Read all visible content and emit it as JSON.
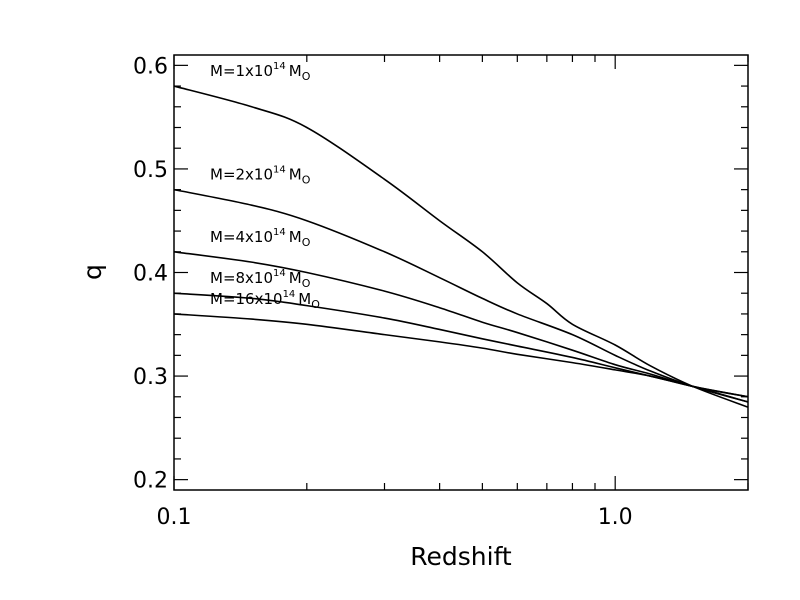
{
  "chart_data": {
    "type": "line",
    "title": "",
    "xlabel": "Redshift",
    "ylabel": "q",
    "x_scale": "log",
    "xlim": [
      0.1,
      2.0
    ],
    "ylim": [
      0.19,
      0.61
    ],
    "x_ticks": [
      {
        "value": 0.1,
        "label": "0.1"
      },
      {
        "value": 1.0,
        "label": "1.0"
      }
    ],
    "y_ticks": [
      {
        "value": 0.2,
        "label": "0.2"
      },
      {
        "value": 0.3,
        "label": "0.3"
      },
      {
        "value": 0.4,
        "label": "0.4"
      },
      {
        "value": 0.5,
        "label": "0.5"
      },
      {
        "value": 0.6,
        "label": "0.6"
      }
    ],
    "grid": false,
    "legend": "none",
    "series": [
      {
        "label": "M=1x10",
        "label_exp": "14",
        "label_unit": "M",
        "label_unit_sub": "O",
        "x": [
          0.1,
          0.15,
          0.2,
          0.3,
          0.4,
          0.5,
          0.6,
          0.7,
          0.8,
          1.0,
          1.2,
          1.5,
          2.0
        ],
        "y": [
          0.58,
          0.56,
          0.54,
          0.49,
          0.45,
          0.42,
          0.39,
          0.37,
          0.35,
          0.33,
          0.31,
          0.29,
          0.27
        ]
      },
      {
        "label": "M=2x10",
        "label_exp": "14",
        "label_unit": "M",
        "label_unit_sub": "O",
        "x": [
          0.1,
          0.15,
          0.2,
          0.3,
          0.4,
          0.5,
          0.6,
          0.8,
          1.0,
          1.2,
          1.5,
          2.0
        ],
        "y": [
          0.48,
          0.465,
          0.45,
          0.42,
          0.395,
          0.375,
          0.36,
          0.34,
          0.32,
          0.305,
          0.29,
          0.275
        ]
      },
      {
        "label": "M=4x10",
        "label_exp": "14",
        "label_unit": "M",
        "label_unit_sub": "O",
        "x": [
          0.1,
          0.15,
          0.2,
          0.3,
          0.4,
          0.5,
          0.6,
          0.8,
          1.0,
          1.2,
          1.5,
          2.0
        ],
        "y": [
          0.42,
          0.41,
          0.4,
          0.382,
          0.366,
          0.352,
          0.342,
          0.325,
          0.311,
          0.302,
          0.29,
          0.28
        ]
      },
      {
        "label": "M=8x10",
        "label_exp": "14",
        "label_unit": "M",
        "label_unit_sub": "O",
        "x": [
          0.1,
          0.15,
          0.2,
          0.3,
          0.4,
          0.5,
          0.6,
          0.8,
          1.0,
          1.2,
          1.5,
          2.0
        ],
        "y": [
          0.38,
          0.375,
          0.368,
          0.356,
          0.345,
          0.336,
          0.329,
          0.318,
          0.308,
          0.3,
          0.29,
          0.275
        ]
      },
      {
        "label": "M=16x10",
        "label_exp": "14",
        "label_unit": "M",
        "label_unit_sub": "O",
        "x": [
          0.1,
          0.15,
          0.2,
          0.3,
          0.4,
          0.5,
          0.6,
          0.8,
          1.0,
          1.2,
          1.5,
          2.0
        ],
        "y": [
          0.36,
          0.355,
          0.35,
          0.34,
          0.333,
          0.327,
          0.321,
          0.313,
          0.306,
          0.3,
          0.29,
          0.28
        ]
      }
    ]
  }
}
